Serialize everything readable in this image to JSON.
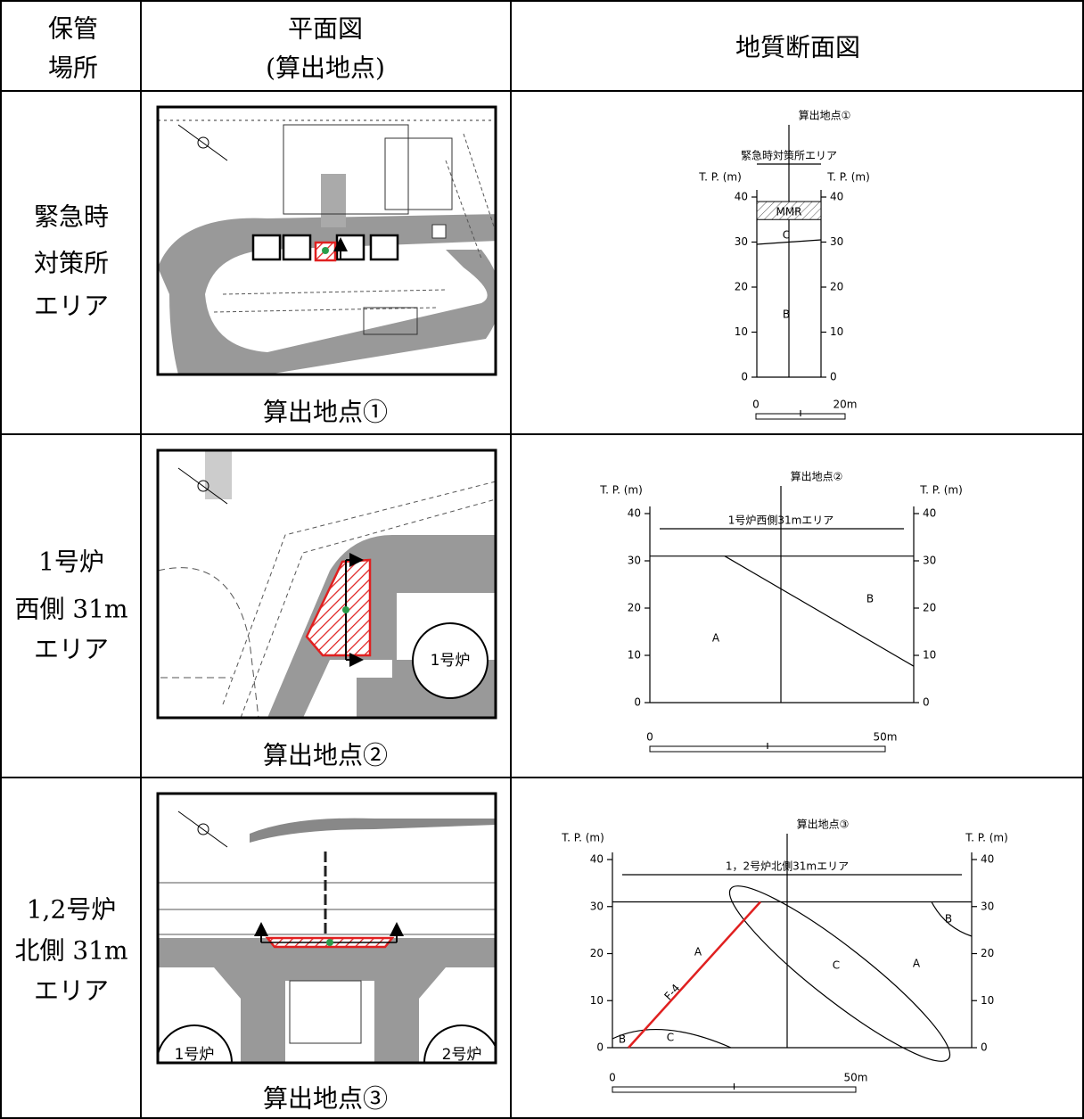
{
  "header": {
    "col1": [
      "保管",
      "場所"
    ],
    "col2": [
      "平面図",
      "(算出地点)"
    ],
    "col3": "地質断面図"
  },
  "rows": [
    {
      "location": [
        "緊急時",
        "対策所",
        "エリア"
      ],
      "plan_caption": "算出地点①",
      "plan_labels": [],
      "section": {
        "point": "算出地点①",
        "area": "緊急時対策所エリア",
        "axis_label": "T. P. (m)",
        "ticks": [
          40,
          30,
          20,
          10,
          0
        ],
        "zones": [
          "MMR",
          "C",
          "B"
        ],
        "scale": [
          "0",
          "20m"
        ]
      }
    },
    {
      "location": [
        "1号炉",
        "西側 31m",
        "エリア"
      ],
      "plan_caption": "算出地点②",
      "plan_labels": [
        "1号炉"
      ],
      "section": {
        "point": "算出地点②",
        "area": "1号炉西側31mエリア",
        "axis_label": "T. P. (m)",
        "ticks": [
          40,
          30,
          20,
          10,
          0
        ],
        "zones": [
          "A",
          "B"
        ],
        "scale": [
          "0",
          "50m"
        ]
      }
    },
    {
      "location": [
        "1,2号炉",
        "北側 31m",
        "エリア"
      ],
      "plan_caption": "算出地点③",
      "plan_labels": [
        "1号炉",
        "2号炉"
      ],
      "section": {
        "point": "算出地点③",
        "area": "1，2号炉北側31mエリア",
        "axis_label": "T. P. (m)",
        "ticks": [
          40,
          30,
          20,
          10,
          0
        ],
        "zones": [
          "A",
          "C",
          "A",
          "B",
          "B",
          "C"
        ],
        "fault": "F-4",
        "scale": [
          "0",
          "50m"
        ]
      }
    }
  ]
}
